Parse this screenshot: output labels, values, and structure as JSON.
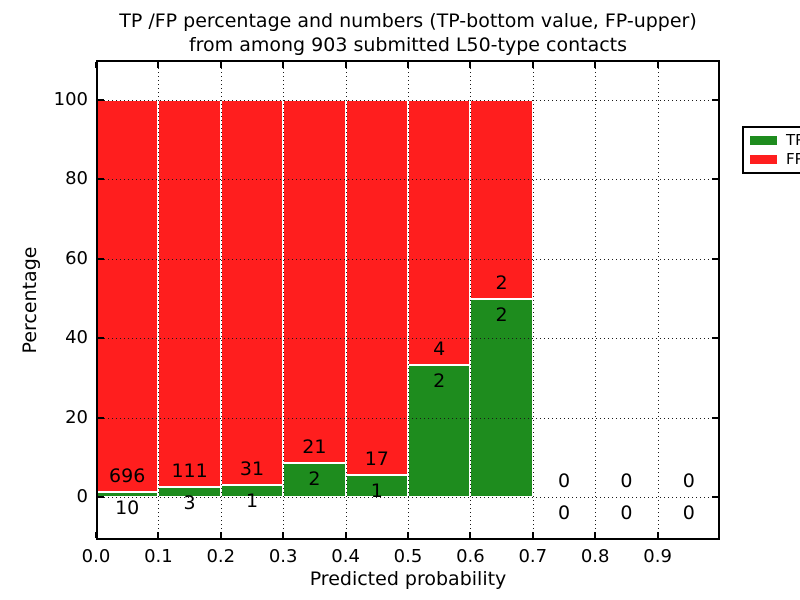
{
  "figure": {
    "title_line1": "TP /FP percentage and numbers (TP-bottom value, FP-upper)",
    "title_line2": "from among 903 submitted L50-type contacts"
  },
  "chart_data": {
    "type": "bar",
    "stacked": true,
    "normalized_to": 100,
    "title": "TP /FP percentage and numbers (TP-bottom value, FP-upper) from among 903 submitted L50-type contacts",
    "xlabel": "Predicted probability",
    "ylabel": "Percentage",
    "total_submitted_contacts": 903,
    "xlim": [
      0.0,
      1.0
    ],
    "ylim": [
      -10.75,
      110
    ],
    "grid": "dotted",
    "legend_position": "upper right",
    "bin_edges": [
      0.0,
      0.1,
      0.2,
      0.3,
      0.4,
      0.5,
      0.6,
      0.7,
      0.8,
      0.9,
      1.0
    ],
    "series": [
      {
        "name": "TP",
        "color": "#1e8c1e",
        "values": [
          10,
          3,
          1,
          2,
          1,
          2,
          2,
          0,
          0,
          0
        ]
      },
      {
        "name": "FP",
        "color": "#ff1e1e",
        "values": [
          696,
          111,
          31,
          21,
          17,
          4,
          2,
          0,
          0,
          0
        ]
      }
    ],
    "tp_percent_per_bin": [
      1.42,
      2.63,
      3.13,
      8.7,
      5.56,
      33.33,
      50.0,
      0,
      0,
      0
    ],
    "xticks": [
      0.0,
      0.1,
      0.2,
      0.3,
      0.4,
      0.5,
      0.6,
      0.7,
      0.8,
      0.9
    ],
    "xtick_labels": [
      "0.0",
      "0.1",
      "0.2",
      "0.3",
      "0.4",
      "0.5",
      "0.6",
      "0.7",
      "0.8",
      "0.9"
    ],
    "yticks": [
      0,
      20,
      40,
      60,
      80,
      100
    ],
    "ytick_labels": [
      "0",
      "20",
      "40",
      "60",
      "80",
      "100"
    ]
  }
}
